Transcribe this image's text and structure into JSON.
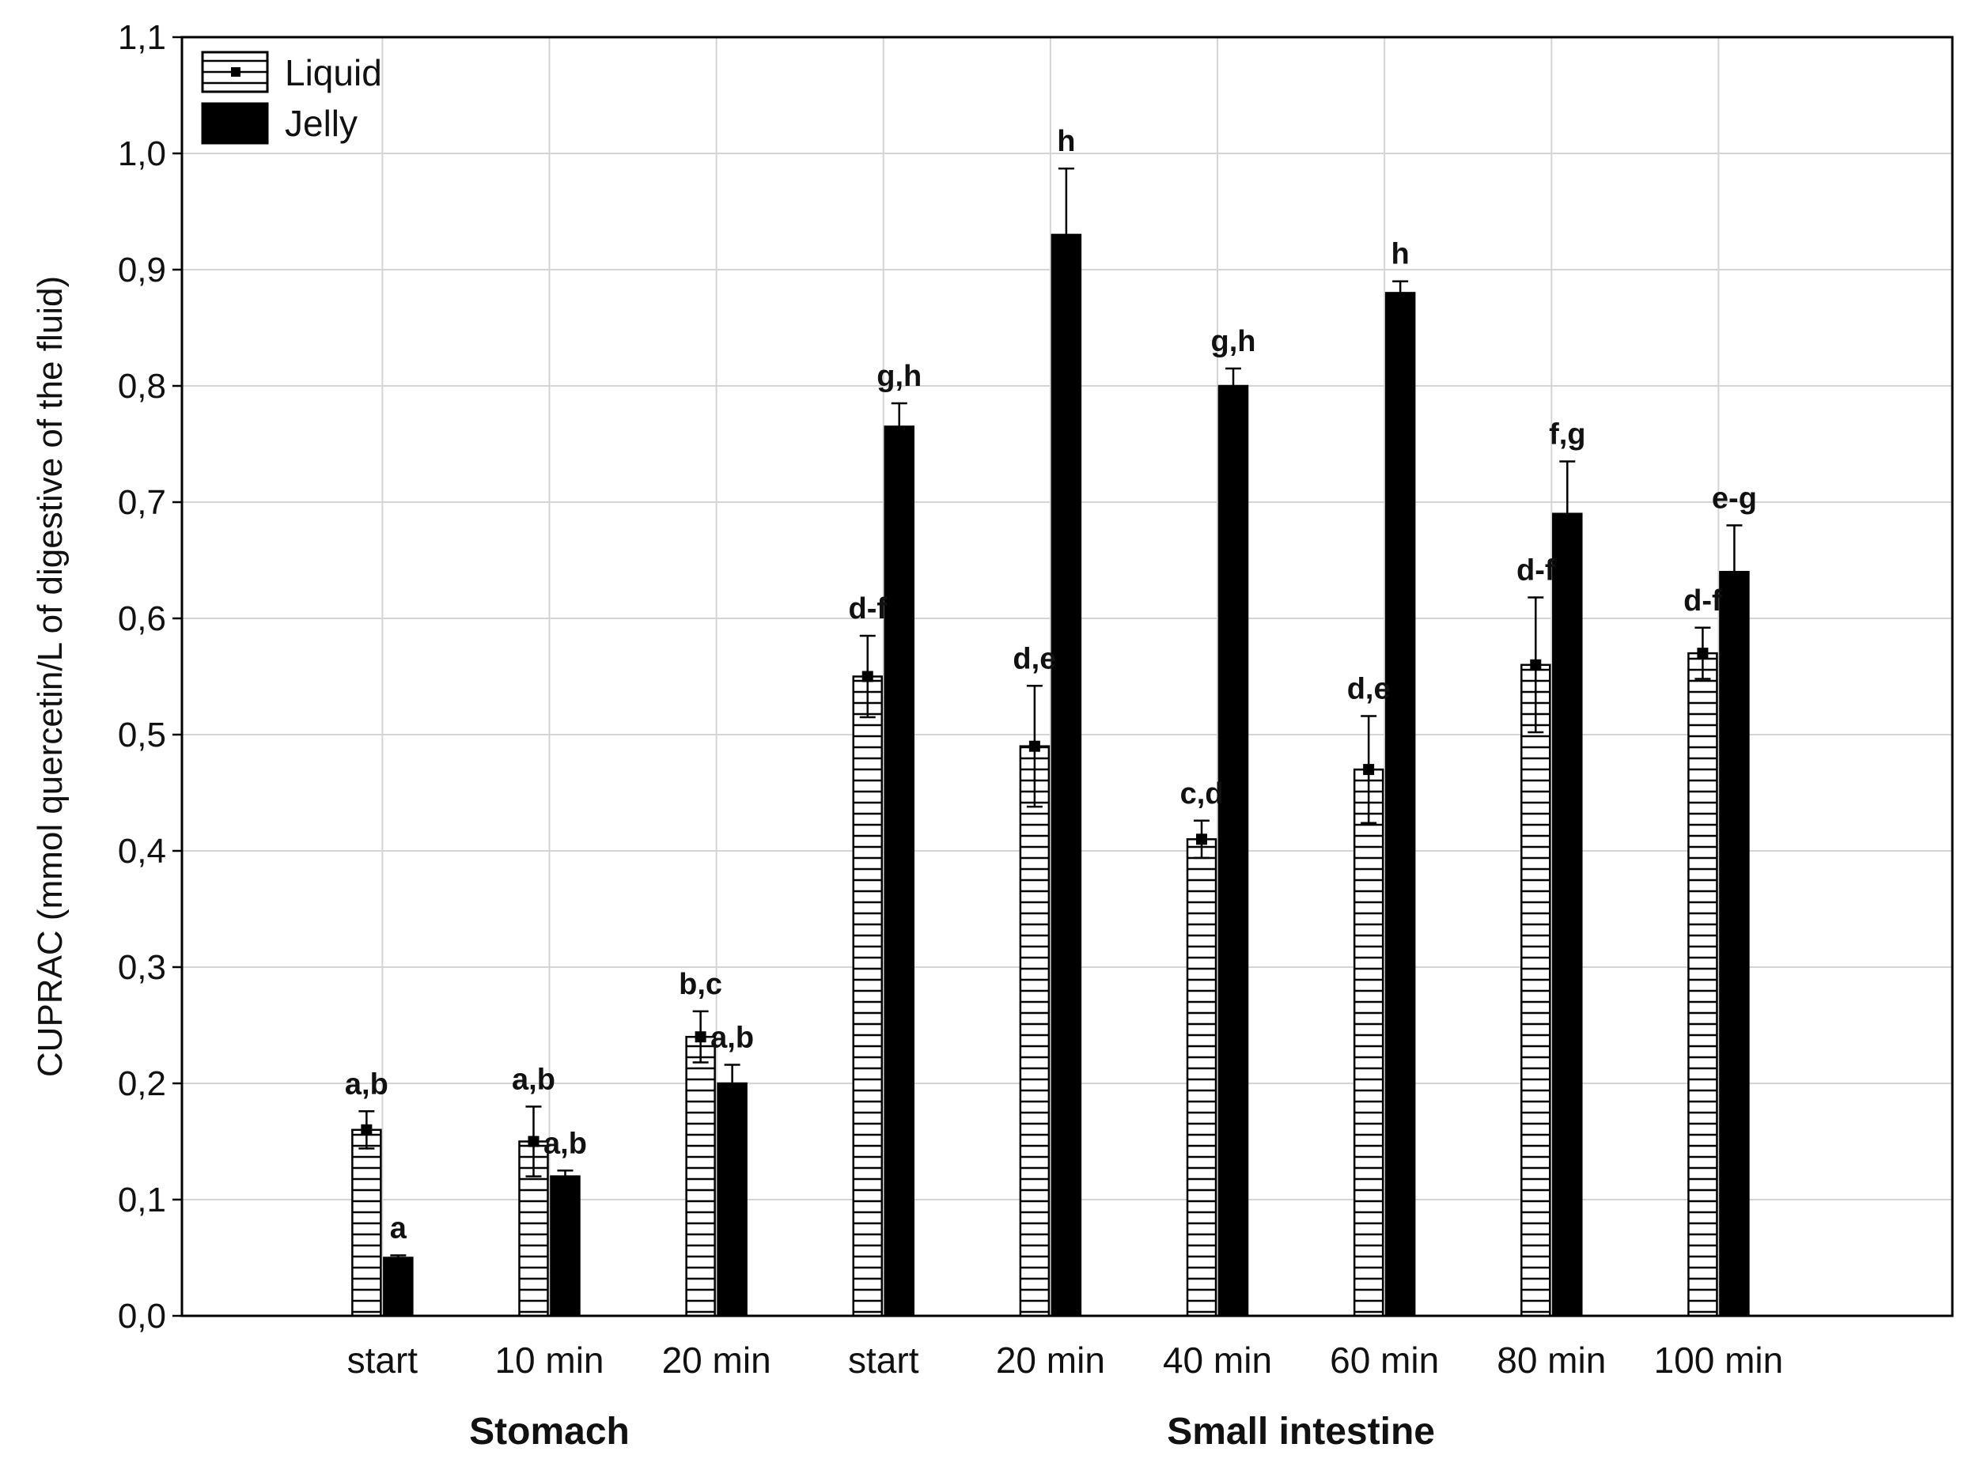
{
  "chart_data": {
    "type": "bar",
    "ylabel": "CUPRAC (mmol quercetin/L of digestive of the fluid)",
    "xlabel": "",
    "ylim": [
      0.0,
      1.1
    ],
    "yticks": [
      "0,0",
      "0,1",
      "0,2",
      "0,3",
      "0,4",
      "0,5",
      "0,6",
      "0,7",
      "0,8",
      "0,9",
      "1,0",
      "1,1"
    ],
    "grid": true,
    "legend_position": "top-left",
    "categories": [
      "start",
      "10 min",
      "20 min",
      "start",
      "20 min",
      "40 min",
      "60 min",
      "80 min",
      "100 min"
    ],
    "groups": [
      {
        "label": "Stomach",
        "categories": [
          0,
          1,
          2
        ]
      },
      {
        "label": "Small intestine",
        "categories": [
          3,
          4,
          5,
          6,
          7,
          8
        ]
      }
    ],
    "series": [
      {
        "name": "Liquid",
        "pattern": "horizontal-hatch",
        "values": [
          0.16,
          0.15,
          0.24,
          0.55,
          0.49,
          0.41,
          0.47,
          0.56,
          0.57
        ],
        "error": [
          0.016,
          0.03,
          0.022,
          0.035,
          0.052,
          0.016,
          0.046,
          0.058,
          0.022
        ],
        "letters": [
          "a,b",
          "a,b",
          "b,c",
          "d-f",
          "d,e",
          "c,d",
          "d,e",
          "d-f",
          "d-f"
        ]
      },
      {
        "name": "Jelly",
        "pattern": "solid",
        "color": "#000000",
        "values": [
          0.05,
          0.12,
          0.2,
          0.765,
          0.93,
          0.8,
          0.88,
          0.69,
          0.64
        ],
        "error": [
          0.002,
          0.005,
          0.016,
          0.02,
          0.057,
          0.015,
          0.01,
          0.045,
          0.04
        ],
        "letters": [
          "a",
          "a,b",
          "a,b",
          "g,h",
          "h",
          "g,h",
          "h",
          "f,g",
          "e-g"
        ]
      }
    ]
  }
}
